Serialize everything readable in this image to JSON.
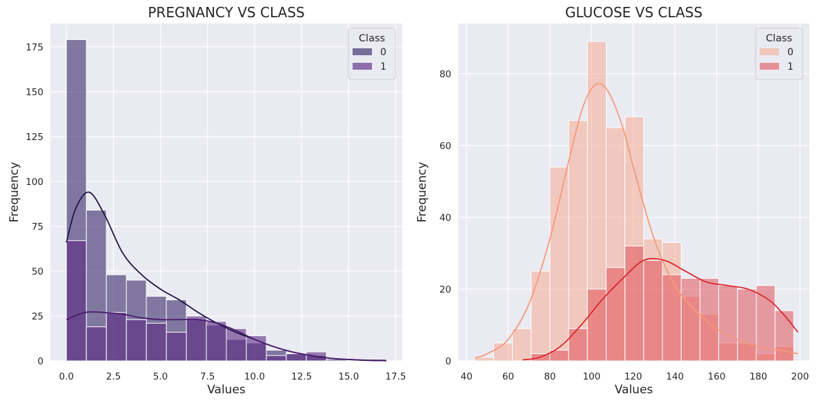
{
  "chart_data": [
    {
      "type": "histogram",
      "title": "PREGNANCY VS CLASS",
      "xlabel": "Values",
      "ylabel": "Frequency",
      "xlim": [
        -0.85,
        17.85
      ],
      "ylim": [
        0,
        188
      ],
      "xticks": [
        0,
        2.5,
        5,
        7.5,
        10,
        12.5,
        15,
        17.5
      ],
      "xtick_labels": [
        "0.0",
        "2.5",
        "5.0",
        "7.5",
        "10.0",
        "12.5",
        "15.0",
        "17.5"
      ],
      "yticks": [
        0,
        25,
        50,
        75,
        100,
        125,
        150,
        175
      ],
      "ytick_labels": [
        "0",
        "25",
        "50",
        "75",
        "100",
        "125",
        "150",
        "175"
      ],
      "grid": true,
      "legend": {
        "title": "Class",
        "placement": "top-right",
        "labels": [
          "0",
          "1"
        ]
      },
      "bins": [
        [
          0,
          1.0625
        ],
        [
          1.0625,
          2.125
        ],
        [
          2.125,
          3.1875
        ],
        [
          3.1875,
          4.25
        ],
        [
          4.25,
          5.3125
        ],
        [
          5.3125,
          6.375
        ],
        [
          6.375,
          7.4375
        ],
        [
          7.4375,
          8.5
        ],
        [
          8.5,
          9.5625
        ],
        [
          9.5625,
          10.625
        ],
        [
          10.625,
          11.6875
        ],
        [
          11.6875,
          12.75
        ],
        [
          12.75,
          13.8125
        ],
        [
          13.8125,
          14.875
        ],
        [
          14.875,
          15.9375
        ],
        [
          15.9375,
          17
        ]
      ],
      "series": [
        {
          "name": "0",
          "color": "#372a68",
          "values": [
            179,
            84,
            48,
            45,
            36,
            34,
            23,
            20,
            12,
            10,
            6,
            4,
            3,
            1,
            0,
            0
          ],
          "kde": {
            "x": [
              0,
              0.5,
              1.2,
              2,
              3,
              4,
              5,
              6,
              7,
              8,
              9,
              10,
              11,
              12,
              13,
              14,
              15,
              16,
              17
            ],
            "y": [
              66,
              85,
              94,
              82,
              60,
              48,
              40,
              34,
              27,
              21,
              16,
              12,
              8,
              5,
              3,
              1.5,
              0.8,
              0.3,
              0.1
            ]
          }
        },
        {
          "name": "1",
          "color": "#5b2a84",
          "values": [
            67,
            19,
            27,
            23,
            21,
            16,
            25,
            22,
            18,
            14,
            3,
            4,
            5,
            0,
            0,
            1
          ],
          "kde": {
            "x": [
              0,
              1,
              2,
              3,
              4,
              5,
              6,
              7,
              8,
              9,
              10,
              11,
              12,
              13,
              14,
              15,
              16,
              17
            ],
            "y": [
              23,
              27,
              27,
              26,
              24,
              23,
              23,
              23,
              21,
              17,
              12,
              8,
              5,
              3,
              1.5,
              0.8,
              0.4,
              0.2
            ]
          }
        }
      ]
    },
    {
      "type": "histogram",
      "title": "GLUCOSE VS CLASS",
      "xlabel": "Values",
      "ylabel": "Frequency",
      "xlim": [
        36,
        204.5
      ],
      "ylim": [
        0,
        94
      ],
      "xticks": [
        40,
        60,
        80,
        100,
        120,
        140,
        160,
        180,
        200
      ],
      "xtick_labels": [
        "40",
        "60",
        "80",
        "100",
        "120",
        "140",
        "160",
        "180",
        "200"
      ],
      "yticks": [
        0,
        20,
        40,
        60,
        80
      ],
      "ytick_labels": [
        "0",
        "20",
        "40",
        "60",
        "80"
      ],
      "grid": true,
      "legend": {
        "title": "Class",
        "placement": "top-right",
        "labels": [
          "0",
          "1"
        ]
      },
      "bins": [
        [
          44,
          53
        ],
        [
          53,
          62
        ],
        [
          62,
          71
        ],
        [
          71,
          80
        ],
        [
          80,
          89
        ],
        [
          89,
          98
        ],
        [
          98,
          107
        ],
        [
          107,
          116
        ],
        [
          116,
          125
        ],
        [
          125,
          134
        ],
        [
          134,
          143
        ],
        [
          143,
          152
        ],
        [
          152,
          161
        ],
        [
          161,
          170
        ],
        [
          170,
          179
        ],
        [
          179,
          188
        ],
        [
          188,
          197
        ]
      ],
      "series": [
        {
          "name": "0",
          "color": "#f6a689",
          "values": [
            1,
            5,
            9,
            25,
            54,
            67,
            89,
            65,
            68,
            34,
            33,
            18,
            13,
            5,
            5,
            2,
            4
          ],
          "kde": {
            "x": [
              44,
              50,
              60,
              70,
              80,
              90,
              96,
              102,
              108,
              115,
              120,
              130,
              140,
              150,
              160,
              170,
              180,
              190,
              199
            ],
            "y": [
              0.8,
              2,
              6,
              16,
              34,
              58,
              71,
              77,
              75,
              65,
              54,
              34,
              21,
              14,
              9,
              6,
              4,
              3,
              2
            ]
          }
        },
        {
          "name": "1",
          "color": "#e0464e",
          "values": [
            0,
            0,
            0,
            2,
            3,
            9,
            20,
            26,
            32,
            28,
            24,
            23,
            23,
            21,
            20,
            21,
            14
          ],
          "kde": {
            "x": [
              67,
              75,
              85,
              95,
              105,
              115,
              125,
              135,
              145,
              155,
              165,
              175,
              185,
              192,
              199
            ],
            "y": [
              0.3,
              1,
              4,
              10,
              17,
              23,
              28,
              28,
              25,
              22,
              21,
              20,
              17,
              13,
              8
            ]
          }
        }
      ]
    }
  ]
}
